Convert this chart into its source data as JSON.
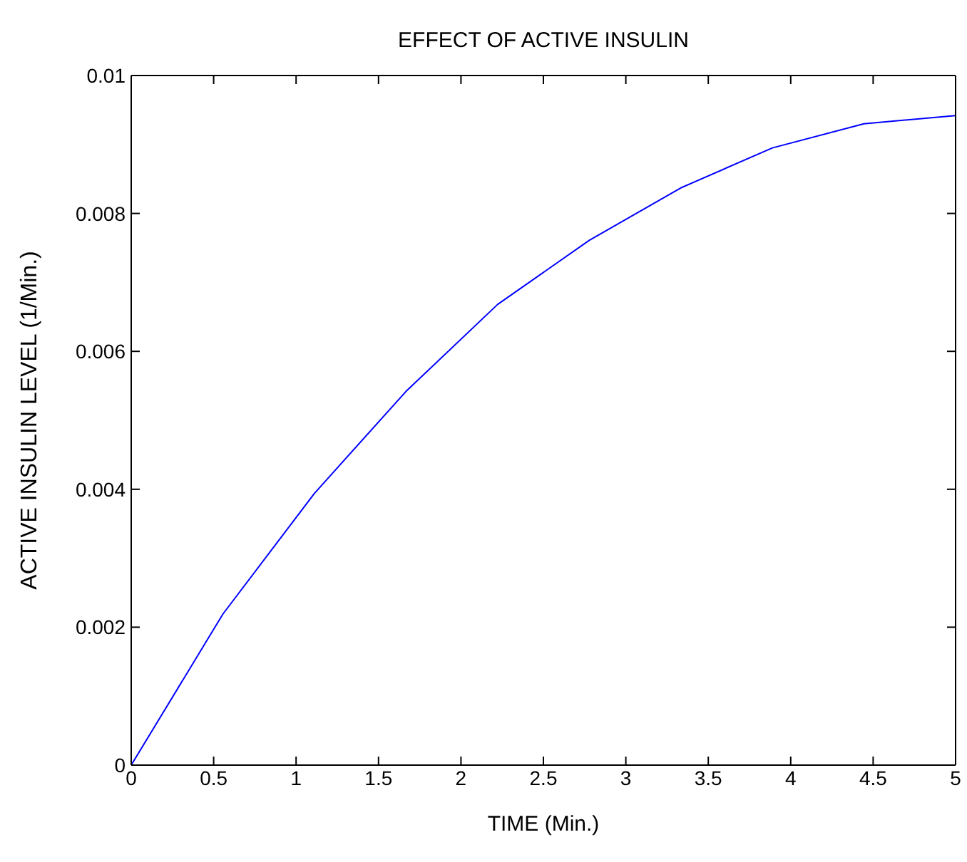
{
  "chart_data": {
    "type": "line",
    "title": "EFFECT OF ACTIVE INSULIN",
    "xlabel": "TIME (Min.)",
    "ylabel": "ACTIVE INSULIN LEVEL (1/Min.)",
    "x": [
      0,
      0.556,
      1.111,
      1.667,
      2.222,
      2.778,
      3.333,
      3.889,
      4.444,
      5
    ],
    "series": [
      {
        "color": "#0000ff",
        "values": [
          0,
          0.00219,
          0.00394,
          0.00542,
          0.00668,
          0.00761,
          0.00837,
          0.00895,
          0.0093,
          0.00942
        ]
      }
    ],
    "xlim": [
      0,
      5
    ],
    "xticks": [
      0,
      0.5,
      1,
      1.5,
      2,
      2.5,
      3,
      3.5,
      4,
      4.5,
      5
    ],
    "ylim": [
      0,
      0.01
    ],
    "yticks": [
      0,
      0.002,
      0.004,
      0.006,
      0.008,
      0.01
    ],
    "grid": false,
    "legend": false,
    "marker": "none",
    "line_style": "solid"
  }
}
